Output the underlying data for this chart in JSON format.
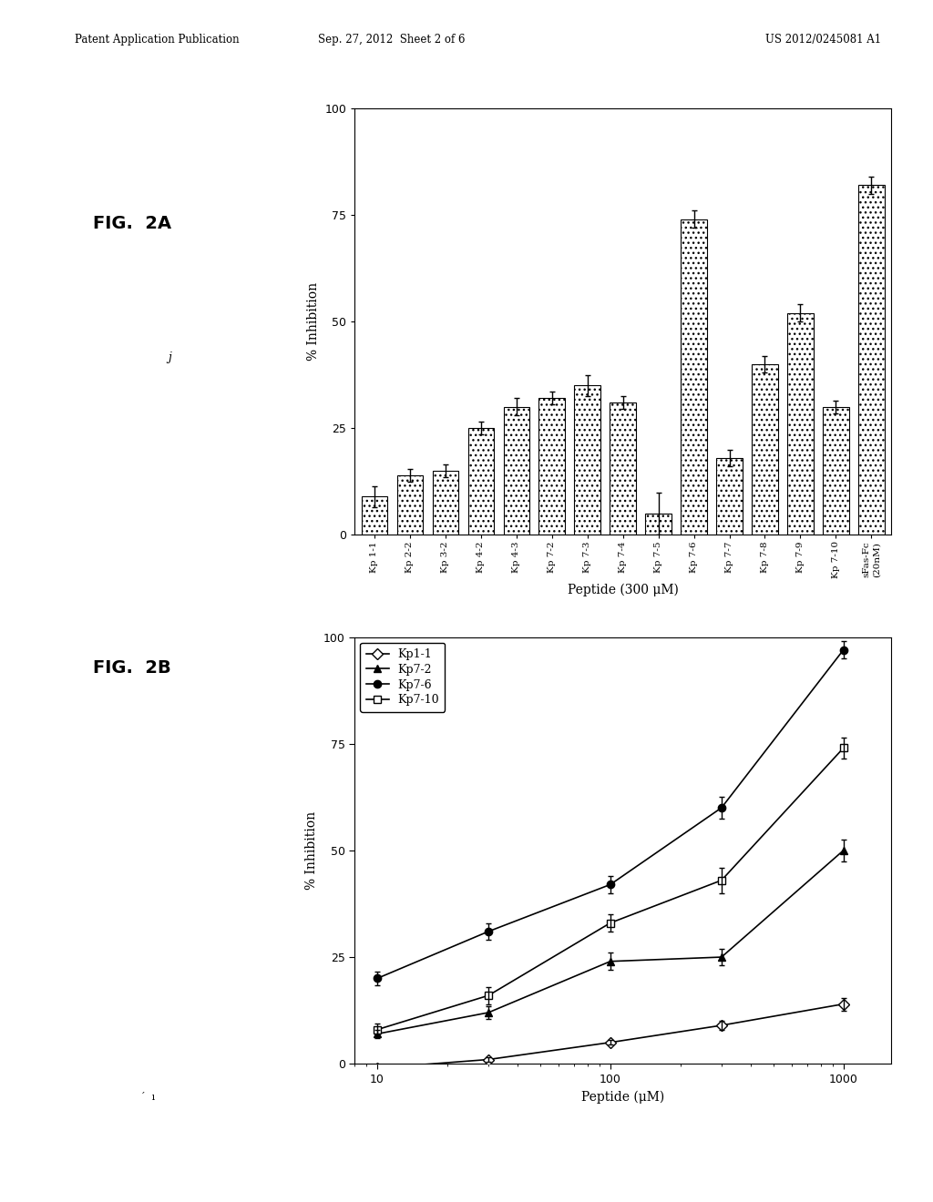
{
  "fig2a": {
    "categories": [
      "Kp 1-1",
      "Kp 2-2",
      "Kp 3-2",
      "Kp 4-2",
      "Kp 4-3",
      "Kp 7-2",
      "Kp 7-3",
      "Kp 7-4",
      "Kp 7-5",
      "Kp 7-6",
      "Kp 7-7",
      "Kp 7-8",
      "Kp 7-9",
      "Kp 7-10",
      "sFas-Fc\n(20nM)"
    ],
    "values": [
      9,
      14,
      15,
      25,
      30,
      32,
      35,
      31,
      5,
      74,
      18,
      40,
      52,
      30,
      82
    ],
    "errors": [
      2.5,
      1.5,
      1.5,
      1.5,
      2.0,
      1.5,
      2.5,
      1.5,
      5.0,
      2.0,
      2.0,
      2.0,
      2.0,
      1.5,
      2.0
    ],
    "ylabel": "% Inhibition",
    "xlabel": "Peptide (300 μM)",
    "ylim": [
      0,
      100
    ],
    "yticks": [
      0,
      25,
      50,
      75,
      100
    ]
  },
  "fig2b": {
    "series_names": [
      "Kp1-1",
      "Kp7-2",
      "Kp7-6",
      "Kp7-10"
    ],
    "x": [
      10,
      30,
      100,
      300,
      1000
    ],
    "y_kp11": [
      -1,
      1,
      5,
      9,
      14
    ],
    "y_kp72": [
      7,
      12,
      24,
      25,
      50
    ],
    "y_kp76": [
      20,
      31,
      42,
      60,
      97
    ],
    "y_kp710": [
      8,
      16,
      33,
      43,
      74
    ],
    "err_kp11": [
      0.5,
      0.5,
      0.5,
      1.0,
      1.5
    ],
    "err_kp72": [
      1.0,
      1.5,
      2.0,
      2.0,
      2.5
    ],
    "err_kp76": [
      1.5,
      2.0,
      2.0,
      2.5,
      2.0
    ],
    "err_kp710": [
      1.5,
      2.0,
      2.0,
      3.0,
      2.5
    ],
    "ylabel": "% Inhibition",
    "xlabel": "Peptide (μM)",
    "ylim": [
      0,
      100
    ],
    "yticks": [
      0,
      25,
      50,
      75,
      100
    ]
  },
  "header_left": "Patent Application Publication",
  "header_mid": "Sep. 27, 2012  Sheet 2 of 6",
  "header_right": "US 2012/0245081 A1",
  "fig_label_a": "FIG.  2A",
  "fig_label_b": "FIG.  2B",
  "background_color": "#ffffff",
  "text_color": "#000000"
}
